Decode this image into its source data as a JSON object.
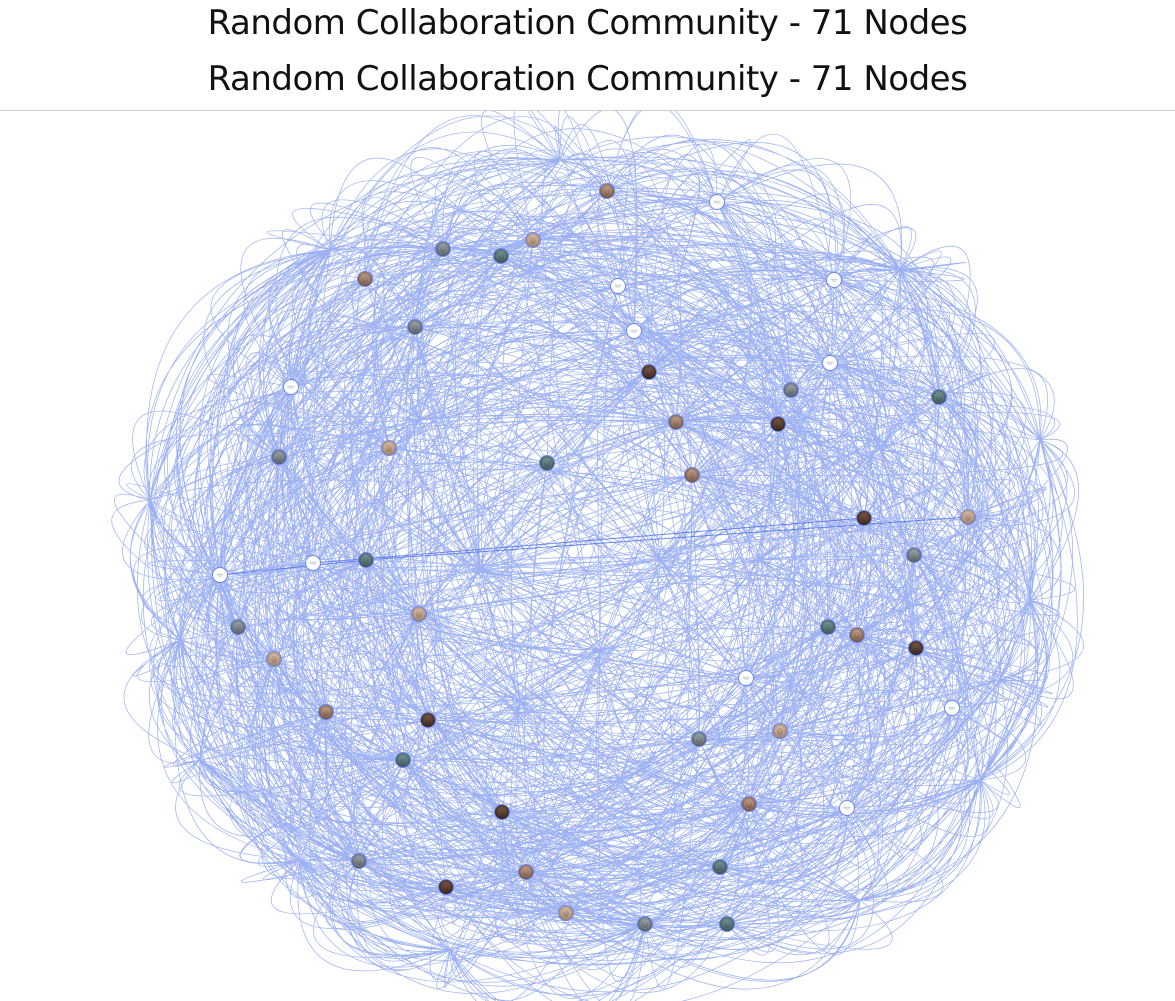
{
  "header": {
    "title_line1": "Random Collaboration Community - 71 Nodes",
    "title_line2": "Random Collaboration Community - 71 Nodes"
  },
  "graph": {
    "node_count": 71,
    "edge_color": "#4a6fe8",
    "node_border_color": "#6b87e8",
    "placeholder_node_fill": "#ffffff",
    "node_icon": "avatar-photo-icon",
    "placeholder_icon": "empty-avatar-icon"
  }
}
